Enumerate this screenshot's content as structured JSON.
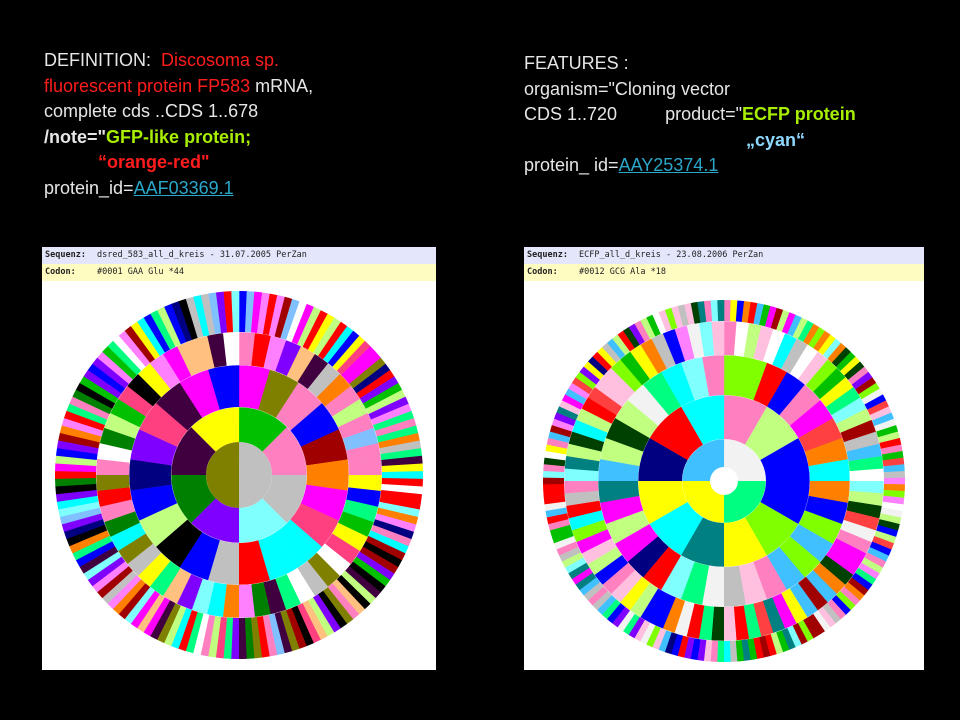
{
  "left_text": {
    "definition_label": "DEFINITION:",
    "definition_value_line1": "Discosoma sp.",
    "line2_red": "fluorescent protein FP583",
    "line2_rest": "mRNA,",
    "line3": "complete cds ..CDS  1..678",
    "note_prefix": "/note=\"",
    "note_green": "GFP-like protein;",
    "orange_red": "“orange-red\"",
    "protein_label": "protein_id=",
    "protein_link": "AAF03369.1"
  },
  "right_text": {
    "features": "FEATURES :",
    "organism": "organism=\"Cloning vector",
    "cds": "CDS 1..720",
    "product_prefix": "product=\"",
    "product_green": "ECFP protein",
    "cyan": "„cyan“",
    "protein_label": "protein_ id=",
    "protein_link": "AAY25374.1"
  },
  "panel_left": {
    "sequence_label": "Sequenz:",
    "sequence_value": "dsred_583_all_d_kreis - 31.07.2005 PerZan",
    "codon_label": "Codon:",
    "codon_value": "#0001 GAA Glu *44",
    "palette": [
      "#ff0000",
      "#00c000",
      "#ff00ff",
      "#80ffff",
      "#0000ff",
      "#ffff00",
      "#ff8000",
      "#00ffff",
      "#8000ff",
      "#ff80c0",
      "#c0ff80",
      "#a00000",
      "#008000",
      "#000080",
      "#400040",
      "#ffc080",
      "#00ff80",
      "#ff4080",
      "#80c0ff",
      "#ffffff",
      "#000000",
      "#c0c0c0",
      "#808000",
      "#ff80ff"
    ]
  },
  "panel_right": {
    "sequence_label": "Sequenz:",
    "sequence_value": "ECFP_all_d_kreis - 23.08.2006 PerZan",
    "codon_label": "Codon:",
    "codon_value": "#0012 GCG Ala *18",
    "palette": [
      "#f2f2f2",
      "#00ffff",
      "#ff00ff",
      "#ffff00",
      "#00c000",
      "#ff0000",
      "#8000ff",
      "#ff8000",
      "#80ffff",
      "#c0ff80",
      "#ff80c0",
      "#008080",
      "#0000ff",
      "#80ff00",
      "#ff80ff",
      "#a00000",
      "#000080",
      "#00ff80",
      "#c0c0c0",
      "#ffffff",
      "#ffc0e0",
      "#004000",
      "#ff4040",
      "#40c0ff"
    ]
  }
}
